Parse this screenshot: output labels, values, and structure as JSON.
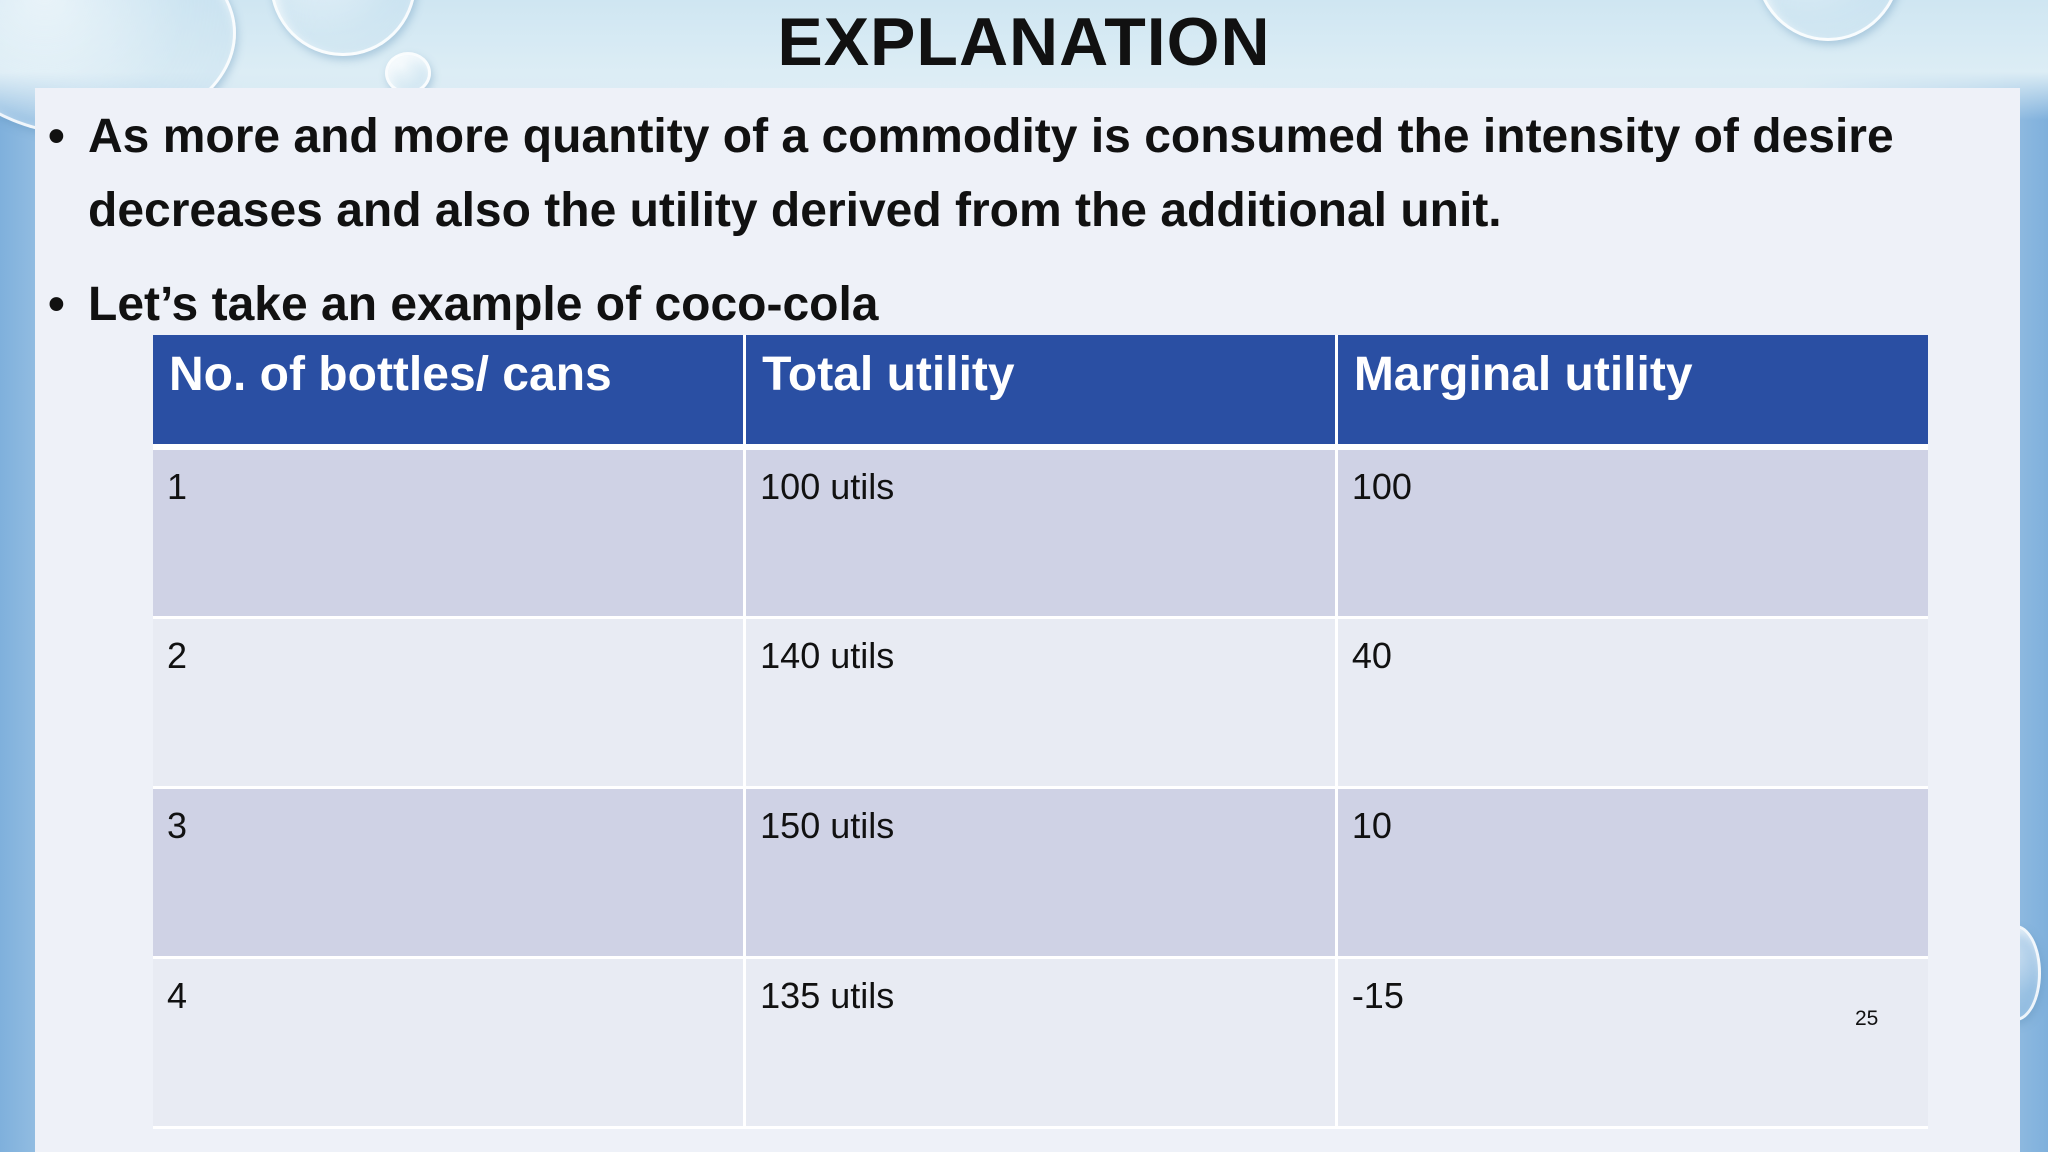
{
  "slide": {
    "title": "EXPLANATION",
    "bullets": [
      "As more and more quantity of a commodity is consumed the intensity of desire decreases and also the utility derived from the additional unit.",
      "Let’s take an example of coco-cola"
    ],
    "bullet_glyph": "•",
    "page_number": "25"
  },
  "table": {
    "headers": [
      "No. of bottles/ cans",
      "Total utility",
      "Marginal utility"
    ],
    "rows": [
      [
        "1",
        "100 utils",
        "100"
      ],
      [
        "2",
        "140 utils",
        "40"
      ],
      [
        "3",
        "150 utils",
        "10"
      ],
      [
        "4",
        "135 utils",
        "-15"
      ]
    ]
  },
  "colors": {
    "header_fill": "#2a4fa3",
    "row_odd_fill": "#cfd2e5",
    "row_even_fill": "#e8ebf3",
    "panel": "#eef1f8"
  }
}
